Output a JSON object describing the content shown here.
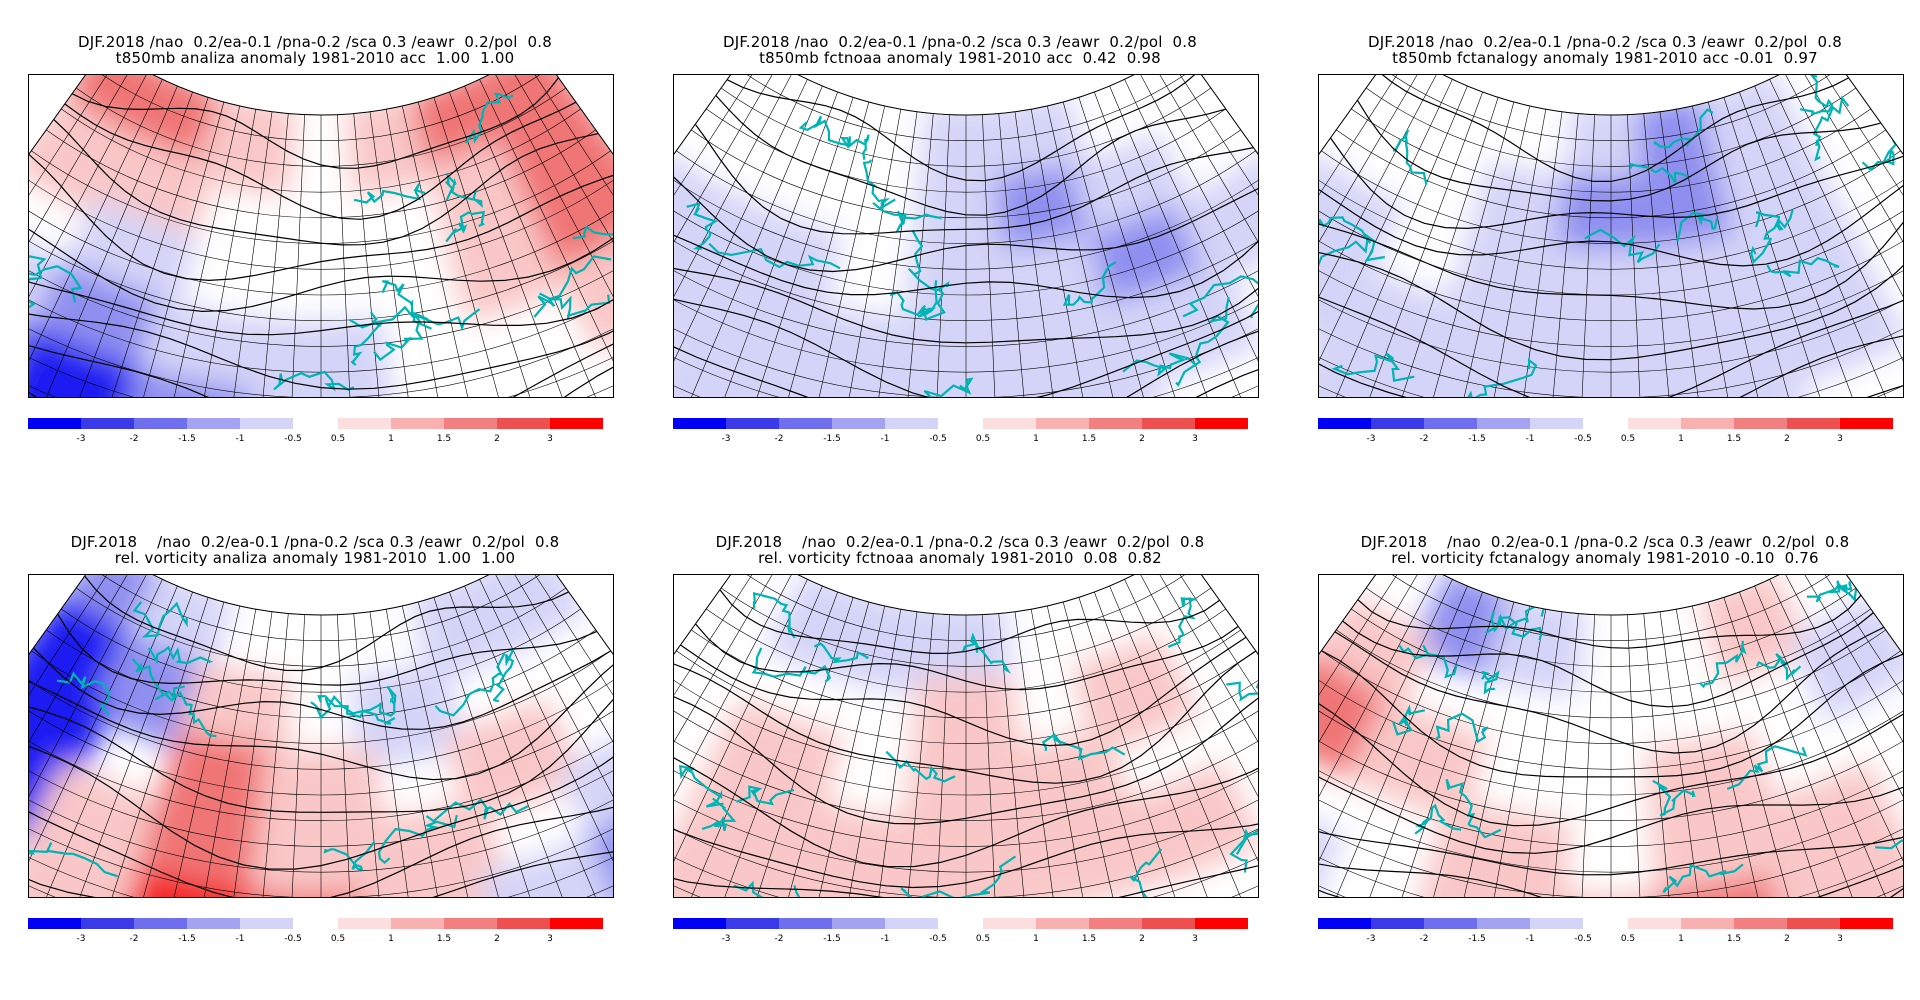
{
  "panels": [
    {
      "id": "t850-analiza",
      "title_line1": "DJF.2018 /nao  0.2/ea-0.1 /pna-0.2 /sca 0.3 /eawr  0.2/pol  0.8",
      "title_line2": "t850mb analiza anomaly 1981-2010 acc  1.00  1.00",
      "pattern": [
        [
          2,
          2,
          1,
          0,
          1,
          2,
          2
        ],
        [
          1,
          1,
          0,
          0,
          0,
          1,
          2
        ],
        [
          0,
          -1,
          0,
          0,
          0,
          1,
          2
        ],
        [
          -1,
          -2,
          -1,
          -1,
          0,
          0,
          1
        ],
        [
          -2,
          -3,
          -2,
          -1,
          0,
          0,
          0
        ]
      ]
    },
    {
      "id": "t850-fctnoaa",
      "title_line1": "DJF.2018 /nao  0.2/ea-0.1 /pna-0.2 /sca 0.3 /eawr  0.2/pol  0.8",
      "title_line2": "t850mb fctnoaa anomaly 1981-2010 acc  0.42  0.98",
      "pattern": [
        [
          0,
          0,
          0,
          -1,
          -1,
          0,
          0
        ],
        [
          0,
          0,
          0,
          -1,
          -2,
          -1,
          0
        ],
        [
          -1,
          -1,
          0,
          -1,
          -1,
          -2,
          -1
        ],
        [
          -1,
          -1,
          -1,
          -1,
          -1,
          -1,
          0
        ],
        [
          0,
          -1,
          -1,
          -1,
          -1,
          0,
          0
        ]
      ]
    },
    {
      "id": "t850-fctanalogy",
      "title_line1": "DJF.2018 /nao  0.2/ea-0.1 /pna-0.2 /sca 0.3 /eawr  0.2/pol  0.8",
      "title_line2": "t850mb fctanalogy anomaly 1981-2010 acc -0.01  0.97",
      "pattern": [
        [
          0,
          0,
          0,
          -1,
          -2,
          -1,
          0
        ],
        [
          0,
          0,
          -1,
          -2,
          -2,
          -1,
          0
        ],
        [
          -1,
          0,
          -1,
          -1,
          -1,
          -1,
          0
        ],
        [
          -1,
          -1,
          -1,
          -1,
          -1,
          -1,
          0
        ],
        [
          0,
          -1,
          -1,
          -1,
          -1,
          0,
          0
        ]
      ]
    },
    {
      "id": "vort-analiza",
      "title_line1": "DJF.2018    /nao  0.2/ea-0.1 /pna-0.2 /sca 0.3 /eawr  0.2/pol  0.8",
      "title_line2": "rel. vorticity analiza anomaly 1981-2010  1.00  1.00",
      "pattern": [
        [
          -2,
          -1,
          0,
          0,
          0,
          -1,
          -1
        ],
        [
          -3,
          -2,
          1,
          0,
          -1,
          0,
          0
        ],
        [
          -3,
          0,
          2,
          1,
          0,
          1,
          0
        ],
        [
          -3,
          1,
          2,
          1,
          1,
          0,
          -1
        ],
        [
          0,
          1,
          3,
          2,
          1,
          -1,
          -2
        ]
      ]
    },
    {
      "id": "vort-fctnoaa",
      "title_line1": "DJF.2018    /nao  0.2/ea-0.1 /pna-0.2 /sca 0.3 /eawr  0.2/pol  0.8",
      "title_line2": "rel. vorticity fctnoaa anomaly 1981-2010  0.08  0.82",
      "pattern": [
        [
          0,
          -1,
          -1,
          -1,
          0,
          0,
          0
        ],
        [
          0,
          0,
          0,
          1,
          0,
          1,
          0
        ],
        [
          0,
          1,
          0,
          1,
          1,
          0,
          0
        ],
        [
          0,
          1,
          1,
          1,
          1,
          1,
          0
        ],
        [
          0,
          1,
          1,
          1,
          0,
          0,
          0
        ]
      ]
    },
    {
      "id": "vort-fctanalogy",
      "title_line1": "DJF.2018    /nao  0.2/ea-0.1 /pna-0.2 /sca 0.3 /eawr  0.2/pol  0.8",
      "title_line2": "rel. vorticity fctanalogy anomaly 1981-2010 -0.10  0.76",
      "pattern": [
        [
          0,
          -2,
          -1,
          0,
          0,
          1,
          0
        ],
        [
          1,
          0,
          0,
          0,
          0,
          0,
          -1
        ],
        [
          2,
          1,
          0,
          0,
          1,
          0,
          0
        ],
        [
          0,
          0,
          1,
          0,
          1,
          1,
          0
        ],
        [
          -1,
          0,
          1,
          1,
          2,
          1,
          0
        ]
      ]
    }
  ],
  "colorbar": {
    "negative_labels": [
      "-3",
      "-2",
      "-1.5",
      "-1",
      "-0.5"
    ],
    "positive_labels": [
      "0.5",
      "1",
      "1.5",
      "2",
      "3"
    ],
    "negative_colors": [
      "#0000f5",
      "#3a3ae8",
      "#6e6eee",
      "#a3a3f2",
      "#d4d4f8"
    ],
    "positive_colors": [
      "#fcdede",
      "#f8b0b0",
      "#f28080",
      "#ee5050",
      "#ff0000"
    ]
  },
  "colors": {
    "coastline": "#00b4b4",
    "contour": "#000000",
    "grid": "#000000"
  }
}
